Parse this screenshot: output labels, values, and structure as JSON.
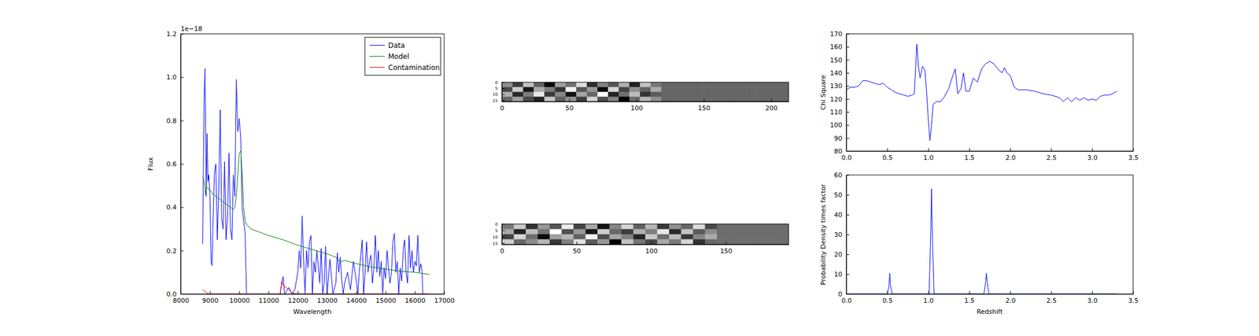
{
  "chart_data": [
    {
      "type": "line",
      "x_label": "Wavelength",
      "y_label": "Flux",
      "annotations": [
        "1e−18"
      ],
      "xlim": [
        8000,
        17000
      ],
      "xticks": [
        8000,
        9000,
        10000,
        11000,
        12000,
        13000,
        14000,
        15000,
        16000,
        17000
      ],
      "ylim": [
        0,
        1.2
      ],
      "yticks": [
        {
          "value": 0,
          "label": "0.0"
        },
        0.2,
        0.4,
        0.6,
        0.8,
        {
          "value": 1,
          "label": "1.0"
        },
        1.2
      ],
      "legend": "upper right",
      "series": [
        {
          "name": "Data",
          "color": "#0000ff",
          "x": [
            8750,
            8800,
            8830,
            8870,
            8900,
            8930,
            8960,
            9000,
            9040,
            9070,
            9100,
            9150,
            9200,
            9250,
            9300,
            9350,
            9400,
            9450,
            9500,
            9550,
            9600,
            9650,
            9700,
            9750,
            9800,
            9850,
            9900,
            9950,
            10000,
            10050,
            10100,
            10200,
            10250,
            10300,
            11400,
            11450,
            11500,
            11550,
            11700,
            11800,
            11900,
            12000,
            12050,
            12100,
            12150,
            12200,
            12250,
            12300,
            12350,
            12400,
            12450,
            12500,
            12550,
            12600,
            12650,
            12700,
            12750,
            12800,
            12850,
            12900,
            12950,
            13000,
            13100,
            13200,
            13300,
            13350,
            13400,
            13450,
            13500,
            13550,
            13600,
            13700,
            13800,
            13900,
            14000,
            14050,
            14100,
            14200,
            14250,
            14300,
            14350,
            14400,
            14450,
            14500,
            14550,
            14600,
            14650,
            14700,
            14750,
            14800,
            14850,
            14900,
            14950,
            15000,
            15050,
            15100,
            15150,
            15200,
            15250,
            15300,
            15350,
            15400,
            15450,
            15500,
            15550,
            15600,
            15650,
            15700,
            15750,
            15800,
            15850,
            15900,
            15950,
            16000,
            16050,
            16100,
            16150,
            16200,
            16250,
            16270
          ],
          "values": [
            0.23,
            0.9,
            1.04,
            0.45,
            0.74,
            0.52,
            0.55,
            0.45,
            0.15,
            0.13,
            0.3,
            0.55,
            0.6,
            0.25,
            0.48,
            0.85,
            0.35,
            0.3,
            0.61,
            0.25,
            0.35,
            0.65,
            0.3,
            0.25,
            0.55,
            0.45,
            0.99,
            0.75,
            0.81,
            0.72,
            0.4,
            0.28,
            0,
            null,
            0,
            0.05,
            0.08,
            0,
            0.03,
            0,
            0.02,
            0.1,
            0.2,
            0.12,
            0.36,
            0.15,
            0,
            0.2,
            0.12,
            0.24,
            0.27,
            0,
            0.15,
            0.1,
            0.2,
            0.13,
            0.05,
            0.21,
            0,
            0.05,
            0.22,
            0,
            0.16,
            0,
            0.05,
            0.19,
            0.1,
            0.17,
            0.07,
            0,
            0.05,
            0.1,
            0.02,
            0.15,
            0.06,
            0,
            0.1,
            0.25,
            0,
            0.1,
            0.24,
            0.1,
            0.15,
            0.18,
            0.05,
            0.12,
            0.27,
            0.1,
            0.2,
            0.08,
            0.15,
            0,
            0.12,
            0.07,
            0.2,
            0.12,
            0.05,
            0.1,
            0.24,
            0.28,
            0.1,
            0.15,
            0,
            0.12,
            0.06,
            0.2,
            0.25,
            0.1,
            0.05,
            0.27,
            0.12,
            0.2,
            0.1,
            0.15,
            0.13,
            0.27,
            0.1,
            0.14,
            0.1,
            0
          ]
        },
        {
          "name": "Model",
          "color": "#008000",
          "x": [
            8750,
            8800,
            8850,
            8870,
            8900,
            9000,
            9100,
            9200,
            9300,
            9400,
            9500,
            9600,
            9700,
            9800,
            9850,
            9900,
            9950,
            10000,
            10050,
            10100,
            10150,
            10200,
            10250,
            10400,
            10600,
            10800,
            11000,
            11500,
            12000,
            12500,
            13000,
            13300,
            13400,
            13500,
            13600,
            14000,
            14500,
            15000,
            15500,
            16000,
            16500
          ],
          "values": [
            0.54,
            0.52,
            0.46,
            0.5,
            0.49,
            0.48,
            0.46,
            0.45,
            0.44,
            0.43,
            0.42,
            0.41,
            0.4,
            0.39,
            0.4,
            0.45,
            0.55,
            0.65,
            0.66,
            0.56,
            0.4,
            0.34,
            0.32,
            0.3,
            0.29,
            0.28,
            0.27,
            0.25,
            0.225,
            0.205,
            0.185,
            0.17,
            0.155,
            0.15,
            0.155,
            0.14,
            0.125,
            0.115,
            0.105,
            0.1,
            0.09
          ]
        },
        {
          "name": "Contamination",
          "color": "#ff0000",
          "x": [
            8750,
            8850,
            8950,
            11400,
            11450,
            11500,
            11700,
            11800,
            12000,
            16500
          ],
          "values": [
            0.02,
            0.01,
            0,
            0,
            0.06,
            0.04,
            0.02,
            0.005,
            0,
            0
          ]
        }
      ]
    },
    {
      "type": "heatmap",
      "xlim": [
        0,
        213
      ],
      "xticks": [
        0,
        50,
        100,
        150,
        200
      ],
      "ylim": [
        0,
        16
      ],
      "yticks": [
        0,
        5,
        10,
        15
      ],
      "cells": [
        [
          0.52,
          0.38,
          0.61,
          0.44,
          0.29,
          0.55,
          0.47,
          0.66,
          0.35,
          0.5,
          0.42,
          0.58,
          0.33,
          0.61,
          0.48,
          0.45,
          0.45,
          0.45,
          0.45,
          0.45,
          0.45,
          0.45,
          0.45,
          0.45,
          0.45,
          0.45,
          0.45
        ],
        [
          0.4,
          0.63,
          0.31,
          0.57,
          0.49,
          0.36,
          0.7,
          0.42,
          0.54,
          0.28,
          0.65,
          0.39,
          0.52,
          0.44,
          0.57,
          0.45,
          0.45,
          0.45,
          0.45,
          0.45,
          0.45,
          0.45,
          0.45,
          0.45,
          0.45,
          0.45,
          0.45
        ],
        [
          0.58,
          0.34,
          0.49,
          0.68,
          0.37,
          0.51,
          0.3,
          0.56,
          0.45,
          0.72,
          0.33,
          0.47,
          0.6,
          0.36,
          0.43,
          0.45,
          0.45,
          0.45,
          0.45,
          0.45,
          0.45,
          0.45,
          0.45,
          0.45,
          0.45,
          0.45,
          0.45
        ],
        [
          0.45,
          0.55,
          0.4,
          0.33,
          0.62,
          0.44,
          0.53,
          0.38,
          0.64,
          0.41,
          0.5,
          0.27,
          0.46,
          0.59,
          0.52,
          0.45,
          0.45,
          0.45,
          0.45,
          0.45,
          0.45,
          0.45,
          0.45,
          0.45,
          0.45,
          0.45,
          0.45
        ]
      ]
    },
    {
      "type": "heatmap",
      "xlim": [
        0,
        192
      ],
      "xticks": [
        0,
        50,
        100,
        150
      ],
      "ylim": [
        0,
        16
      ],
      "yticks": [
        0,
        5,
        10,
        15
      ],
      "cells": [
        [
          0.47,
          0.6,
          0.35,
          0.52,
          0.41,
          0.66,
          0.38,
          0.55,
          0.3,
          0.49,
          0.62,
          0.43,
          0.57,
          0.36,
          0.51,
          0.44,
          0.63,
          0.39,
          0.45,
          0.45,
          0.45,
          0.45,
          0.45,
          0.45
        ],
        [
          0.55,
          0.33,
          0.58,
          0.46,
          0.69,
          0.4,
          0.52,
          0.31,
          0.61,
          0.44,
          0.37,
          0.56,
          0.48,
          0.65,
          0.34,
          0.59,
          0.42,
          0.5,
          0.45,
          0.45,
          0.45,
          0.45,
          0.45,
          0.45
        ],
        [
          0.38,
          0.62,
          0.45,
          0.29,
          0.53,
          0.57,
          0.43,
          0.67,
          0.4,
          0.54,
          0.48,
          0.33,
          0.6,
          0.45,
          0.58,
          0.36,
          0.49,
          0.55,
          0.45,
          0.45,
          0.45,
          0.45,
          0.45,
          0.45
        ],
        [
          0.61,
          0.44,
          0.5,
          0.57,
          0.36,
          0.48,
          0.64,
          0.42,
          0.52,
          0.27,
          0.59,
          0.46,
          0.39,
          0.55,
          0.47,
          0.62,
          0.35,
          0.44,
          0.45,
          0.45,
          0.45,
          0.45,
          0.45,
          0.45
        ]
      ]
    },
    {
      "type": "line",
      "y_label": "Chi Square",
      "color": "#0000ff",
      "xlim": [
        0,
        3.5
      ],
      "xticks": [
        {
          "value": 0,
          "label": "0.0"
        },
        0.5,
        {
          "value": 1,
          "label": "1.0"
        },
        1.5,
        {
          "value": 2,
          "label": "2.0"
        },
        2.5,
        {
          "value": 3,
          "label": "3.0"
        },
        3.5
      ],
      "ylim": [
        80,
        170
      ],
      "yticks": [
        80,
        90,
        100,
        110,
        120,
        130,
        140,
        150,
        160,
        170
      ],
      "x": [
        0,
        0.05,
        0.1,
        0.15,
        0.2,
        0.25,
        0.3,
        0.35,
        0.4,
        0.45,
        0.5,
        0.55,
        0.6,
        0.65,
        0.7,
        0.75,
        0.8,
        0.83,
        0.86,
        0.88,
        0.9,
        0.93,
        0.96,
        0.98,
        1.0,
        1.02,
        1.04,
        1.06,
        1.1,
        1.15,
        1.2,
        1.25,
        1.3,
        1.33,
        1.36,
        1.4,
        1.43,
        1.46,
        1.5,
        1.55,
        1.6,
        1.65,
        1.7,
        1.75,
        1.8,
        1.85,
        1.9,
        1.93,
        1.96,
        2.0,
        2.05,
        2.1,
        2.2,
        2.3,
        2.4,
        2.5,
        2.6,
        2.65,
        2.7,
        2.75,
        2.8,
        2.85,
        2.9,
        2.95,
        3.0,
        3.05,
        3.1,
        3.15,
        3.2,
        3.25,
        3.3
      ],
      "values": [
        127,
        129,
        129,
        130,
        134,
        134,
        133,
        132,
        131,
        132,
        129,
        127,
        125,
        124,
        123,
        122,
        123,
        124,
        162,
        145,
        136,
        145,
        142,
        125,
        105,
        88,
        100,
        116,
        118,
        118,
        122,
        128,
        138,
        143,
        124,
        128,
        140,
        126,
        126,
        136,
        133,
        143,
        147,
        149,
        147,
        143,
        140,
        144,
        140,
        138,
        129,
        127,
        127,
        126,
        124,
        123,
        121,
        118,
        121,
        118,
        121,
        119,
        121,
        119,
        120,
        119,
        122,
        123,
        123,
        124,
        126
      ]
    },
    {
      "type": "line",
      "x_label": "Redshift",
      "y_label": "Probability Density times factor",
      "color": "#0000ff",
      "xlim": [
        0,
        3.5
      ],
      "xticks": [
        {
          "value": 0,
          "label": "0.0"
        },
        0.5,
        {
          "value": 1,
          "label": "1.0"
        },
        1.5,
        {
          "value": 2,
          "label": "2.0"
        },
        2.5,
        {
          "value": 3,
          "label": "3.0"
        },
        3.5
      ],
      "ylim": [
        0,
        60
      ],
      "yticks": [
        0,
        10,
        20,
        30,
        40,
        50,
        60
      ],
      "x": [
        0,
        0.5,
        0.52,
        0.53,
        0.54,
        0.56,
        1.01,
        1.03,
        1.04,
        1.05,
        1.07,
        1.68,
        1.7,
        1.71,
        1.72,
        1.74,
        3.3
      ],
      "values": [
        0,
        0,
        4,
        10.5,
        4,
        0,
        0,
        30,
        53,
        30,
        0,
        0,
        6,
        10.5,
        6,
        0,
        0
      ]
    }
  ]
}
